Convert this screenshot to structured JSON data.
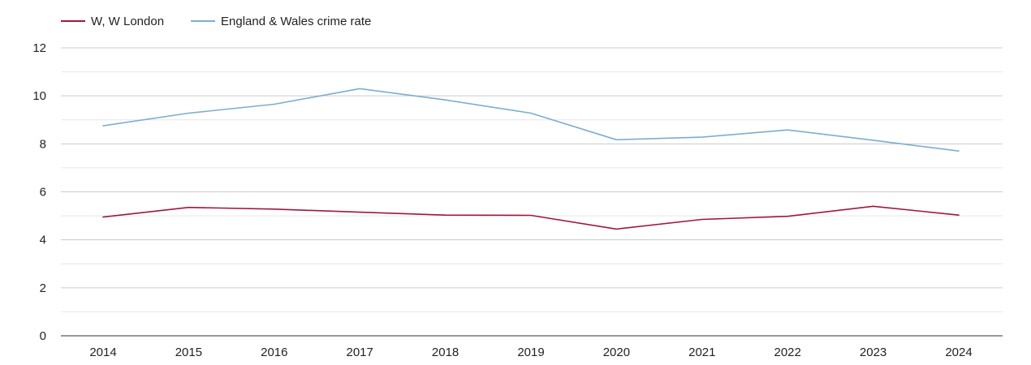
{
  "chart_data": {
    "type": "line",
    "title": "",
    "xlabel": "",
    "ylabel": "",
    "x": [
      "2014",
      "2015",
      "2016",
      "2017",
      "2018",
      "2019",
      "2020",
      "2021",
      "2022",
      "2023",
      "2024"
    ],
    "ylim": [
      0,
      12
    ],
    "yticks": [
      "0",
      "2",
      "4",
      "6",
      "8",
      "10",
      "12"
    ],
    "grid": true,
    "legend_position": "top-left",
    "series": [
      {
        "name": "W, W London",
        "color": "#a0173c",
        "values": [
          4.95,
          5.35,
          5.28,
          5.15,
          5.03,
          5.02,
          4.45,
          4.85,
          4.98,
          5.4,
          5.03
        ]
      },
      {
        "name": "England & Wales crime rate",
        "color": "#7aaed0",
        "values": [
          8.75,
          9.28,
          9.65,
          10.3,
          9.83,
          9.28,
          8.17,
          8.28,
          8.58,
          8.15,
          7.7
        ]
      }
    ]
  }
}
